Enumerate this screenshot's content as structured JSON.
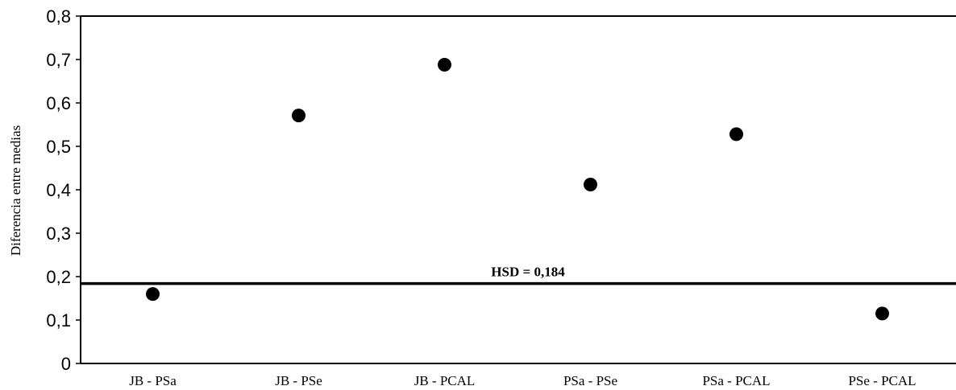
{
  "chart_data": {
    "type": "scatter",
    "title": "",
    "xlabel": "",
    "ylabel": "Diferencia entre medias",
    "categories": [
      "JB - PSa",
      "JB - PSe",
      "JB - PCAL",
      "PSa - PSe",
      "PSa - PCAL",
      "PSe - PCAL"
    ],
    "values": [
      0.16,
      0.571,
      0.688,
      0.412,
      0.528,
      0.115
    ],
    "ylim": [
      0,
      0.8
    ],
    "yticks": [
      0,
      0.1,
      0.2,
      0.3,
      0.4,
      0.5,
      0.6,
      0.7,
      0.8
    ],
    "ytick_labels": [
      "0",
      "0,1",
      "0,2",
      "0,3",
      "0,4",
      "0,5",
      "0,6",
      "0,7",
      "0,8"
    ],
    "reference_line": {
      "value": 0.184,
      "label": "HSD = 0,184"
    },
    "grid": false,
    "marker_color": "#000000"
  }
}
